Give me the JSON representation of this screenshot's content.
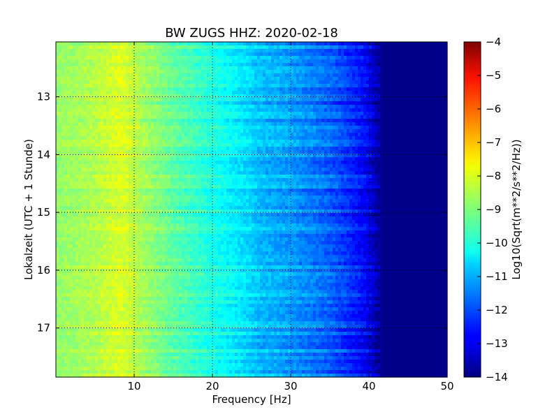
{
  "chart_data": {
    "type": "heatmap",
    "title": "BW ZUGS HHZ: 2020-02-18",
    "xlabel": "Frequency [Hz]",
    "ylabel": "Lokalzeit (UTC + 1 Stunde)",
    "colorbar_label": "Log10(Sqrt(m**2/s**2/Hz))",
    "colormap": "jet",
    "grid": true,
    "xlim": [
      0,
      50
    ],
    "ylim": [
      17.85,
      12.05
    ],
    "y_inverted": true,
    "clim": [
      -14,
      -4
    ],
    "x_ticks": [
      10,
      20,
      30,
      40,
      50
    ],
    "x_tick_labels": [
      "10",
      "20",
      "30",
      "40",
      "50"
    ],
    "y_ticks": [
      13,
      14,
      15,
      16,
      17
    ],
    "y_tick_labels": [
      "13",
      "14",
      "15",
      "16",
      "17"
    ],
    "colorbar_ticks": [
      -4,
      -5,
      -6,
      -7,
      -8,
      -9,
      -10,
      -11,
      -12,
      -13,
      -14
    ],
    "colorbar_tick_labels": [
      "−4",
      "−5",
      "−6",
      "−7",
      "−8",
      "−9",
      "−10",
      "−11",
      "−12",
      "−13",
      "−14"
    ],
    "spectrum_profile": {
      "frequency_hz": [
        0,
        2,
        5,
        8,
        9,
        12,
        15,
        20,
        24,
        26,
        30,
        35,
        38,
        40,
        41,
        42,
        50
      ],
      "log10_psd": [
        -8.8,
        -8.7,
        -8.5,
        -8.1,
        -8.2,
        -8.8,
        -9.3,
        -10.0,
        -10.5,
        -10.9,
        -11.2,
        -11.8,
        -12.4,
        -12.9,
        -13.6,
        -13.9,
        -13.9
      ]
    }
  }
}
